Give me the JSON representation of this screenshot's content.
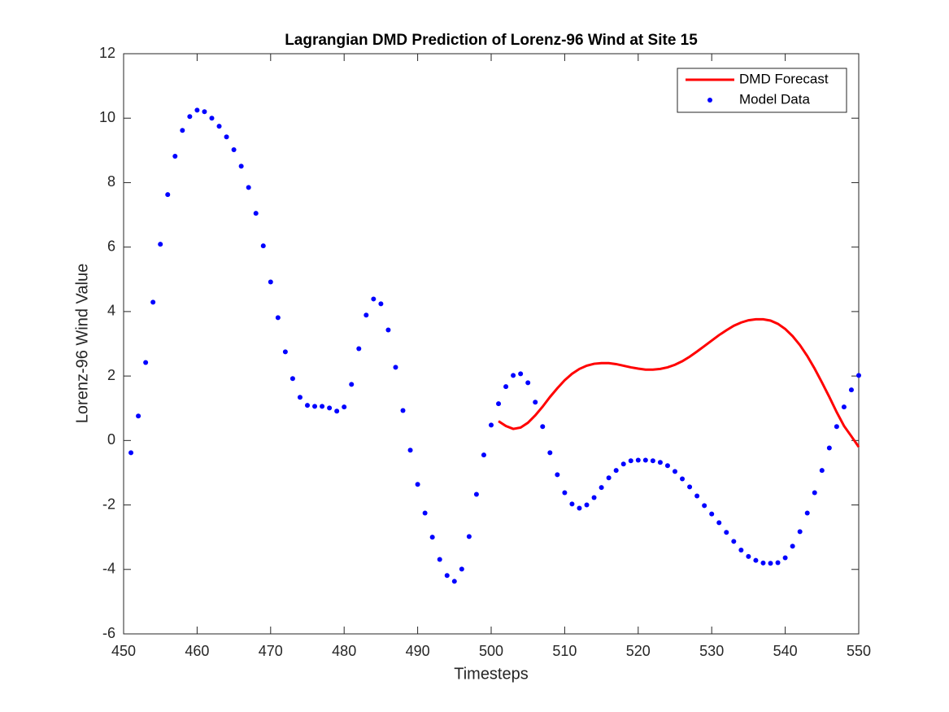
{
  "chart_data": {
    "type": "line",
    "title": "Lagrangian DMD Prediction of Lorenz-96 Wind at Site 15",
    "x_label": "Timesteps",
    "y_label": "Lorenz-96 Wind Value",
    "xlim": [
      450,
      550
    ],
    "xticks": [
      450,
      460,
      470,
      480,
      490,
      500,
      510,
      520,
      530,
      540,
      550
    ],
    "ylim": [
      -6,
      12
    ],
    "yticks": [
      -6,
      -4,
      -2,
      0,
      2,
      4,
      6,
      8,
      10,
      12
    ],
    "legend": "upper right",
    "series": [
      {
        "name": "DMD Forecast",
        "color": "#ff0000",
        "style": "line",
        "x": [
          501,
          502,
          503,
          504,
          505,
          506,
          507,
          508,
          509,
          510,
          511,
          512,
          513,
          514,
          515,
          516,
          517,
          518,
          519,
          520,
          521,
          522,
          523,
          524,
          525,
          526,
          527,
          528,
          529,
          530,
          531,
          532,
          533,
          534,
          535,
          536,
          537,
          538,
          539,
          540,
          541,
          542,
          543,
          544,
          545,
          546,
          547,
          548,
          549,
          550
        ],
        "values": [
          0.6,
          0.45,
          0.36,
          0.4,
          0.55,
          0.78,
          1.05,
          1.35,
          1.62,
          1.87,
          2.07,
          2.22,
          2.32,
          2.38,
          2.4,
          2.4,
          2.37,
          2.32,
          2.27,
          2.23,
          2.2,
          2.2,
          2.22,
          2.27,
          2.35,
          2.46,
          2.6,
          2.76,
          2.93,
          3.1,
          3.27,
          3.42,
          3.56,
          3.66,
          3.73,
          3.76,
          3.76,
          3.72,
          3.62,
          3.46,
          3.24,
          2.96,
          2.62,
          2.23,
          1.8,
          1.35,
          0.88,
          0.45,
          0.13,
          -0.2
        ]
      },
      {
        "name": "Model Data",
        "color": "#0000ff",
        "style": "marker",
        "x": [
          451,
          452,
          453,
          454,
          455,
          456,
          457,
          458,
          459,
          460,
          461,
          462,
          463,
          464,
          465,
          466,
          467,
          468,
          469,
          470,
          471,
          472,
          473,
          474,
          475,
          476,
          477,
          478,
          479,
          480,
          481,
          482,
          483,
          484,
          485,
          486,
          487,
          488,
          489,
          490,
          491,
          492,
          493,
          494,
          495,
          496,
          497,
          498,
          499,
          500,
          501,
          502,
          503,
          504,
          505,
          506,
          507,
          508,
          509,
          510,
          511,
          512,
          513,
          514,
          515,
          516,
          517,
          518,
          519,
          520,
          521,
          522,
          523,
          524,
          525,
          526,
          527,
          528,
          529,
          530,
          531,
          532,
          533,
          534,
          535,
          536,
          537,
          538,
          539,
          540,
          541,
          542,
          543,
          544,
          545,
          546,
          547,
          548,
          549,
          550
        ],
        "values": [
          -0.38,
          0.76,
          2.42,
          4.29,
          6.09,
          7.63,
          8.82,
          9.62,
          10.05,
          10.25,
          10.2,
          10.0,
          9.75,
          9.42,
          9.02,
          8.51,
          7.85,
          7.05,
          6.04,
          4.92,
          3.81,
          2.75,
          1.92,
          1.34,
          1.09,
          1.06,
          1.06,
          1.01,
          0.91,
          1.04,
          1.74,
          2.85,
          3.89,
          4.39,
          4.24,
          3.43,
          2.27,
          0.93,
          -0.3,
          -1.36,
          -2.25,
          -3.0,
          -3.69,
          -4.19,
          -4.37,
          -3.99,
          -2.98,
          -1.67,
          -0.45,
          0.48,
          1.14,
          1.67,
          2.02,
          2.07,
          1.79,
          1.19,
          0.43,
          -0.38,
          -1.06,
          -1.62,
          -1.97,
          -2.1,
          -2.0,
          -1.77,
          -1.46,
          -1.16,
          -0.93,
          -0.73,
          -0.63,
          -0.61,
          -0.61,
          -0.63,
          -0.68,
          -0.78,
          -0.96,
          -1.19,
          -1.44,
          -1.72,
          -2.02,
          -2.28,
          -2.55,
          -2.85,
          -3.13,
          -3.4,
          -3.6,
          -3.72,
          -3.8,
          -3.81,
          -3.79,
          -3.64,
          -3.28,
          -2.83,
          -2.25,
          -1.62,
          -0.93,
          -0.23,
          0.43,
          1.04,
          1.57,
          2.02
        ]
      }
    ]
  }
}
